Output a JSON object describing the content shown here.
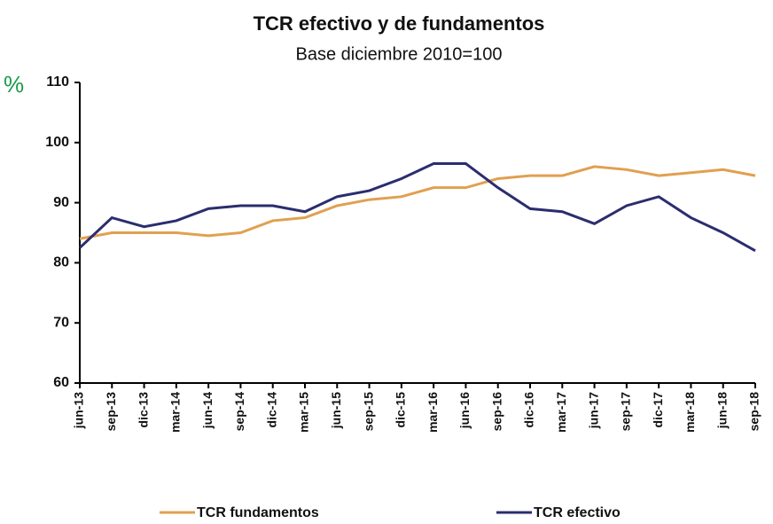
{
  "chart_data": {
    "type": "line",
    "title": "TCR efectivo y de fundamentos",
    "subtitle": "Base diciembre 2010=100",
    "annotation": "%",
    "categories": [
      "jun-13",
      "sep-13",
      "dic-13",
      "mar-14",
      "jun-14",
      "sep-14",
      "dic-14",
      "mar-15",
      "jun-15",
      "sep-15",
      "dic-15",
      "mar-16",
      "jun-16",
      "sep-16",
      "dic-16",
      "mar-17",
      "jun-17",
      "sep-17",
      "dic-17",
      "mar-18",
      "jun-18",
      "sep-18"
    ],
    "series": [
      {
        "name": "TCR fundamentos",
        "color": "#e0a050",
        "values": [
          84,
          85,
          85,
          85,
          84.5,
          85,
          87,
          87.5,
          89.5,
          90.5,
          91,
          92.5,
          92.5,
          94,
          94.5,
          94.5,
          96,
          95.5,
          94.5,
          95,
          95.5,
          94.5
        ]
      },
      {
        "name": "TCR efectivo",
        "color": "#2b2d6e",
        "values": [
          82.5,
          87.5,
          86,
          87,
          89,
          89.5,
          89.5,
          88.5,
          91,
          92,
          94,
          96.5,
          96.5,
          92.5,
          89,
          88.5,
          86.5,
          89.5,
          91,
          87.5,
          85,
          82
        ]
      }
    ],
    "ylim": [
      60,
      110
    ],
    "yticks": [
      60,
      70,
      80,
      90,
      100,
      110
    ],
    "grid": false
  }
}
